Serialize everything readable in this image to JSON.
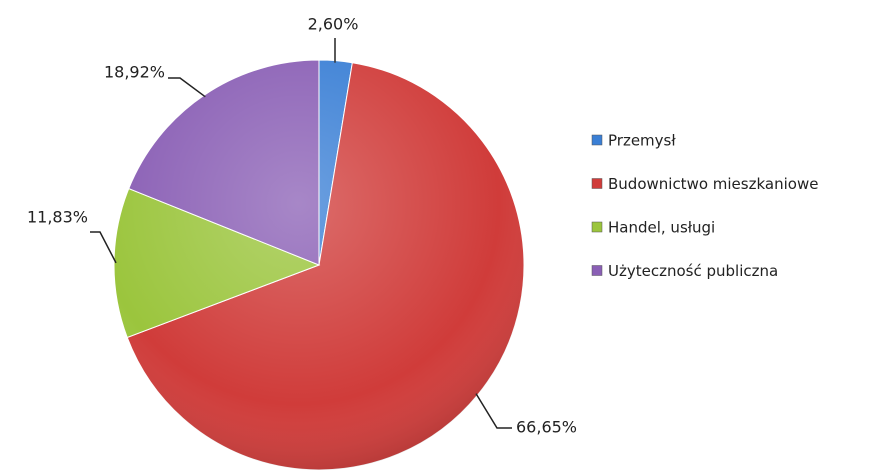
{
  "chart_data": {
    "type": "pie",
    "categories": [
      "Przemysł",
      "Budownictwo mieszkaniowe",
      "Handel, usługi",
      "Użyteczność publiczna"
    ],
    "values": [
      2.6,
      66.65,
      11.83,
      18.92
    ],
    "value_labels": [
      "2,60%",
      "66,65%",
      "11,83%",
      "18,92%"
    ],
    "colors": [
      "#3a7fd5",
      "#d03c3a",
      "#9bc53d",
      "#8a5fb5"
    ],
    "legend": "right"
  }
}
